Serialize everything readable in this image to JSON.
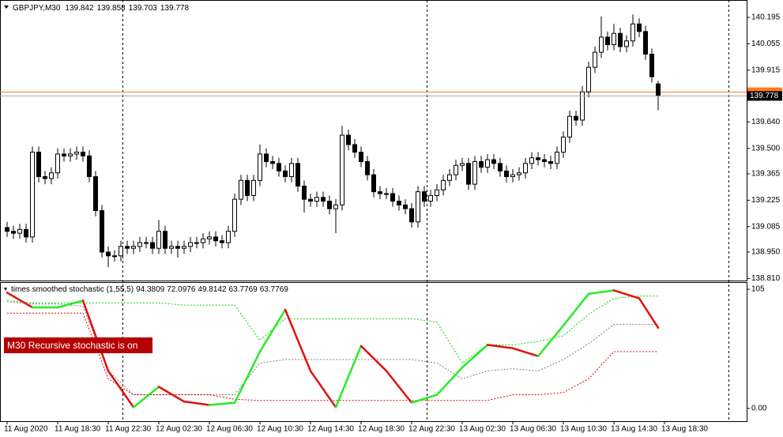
{
  "chart_data": {
    "type": "candlestick",
    "symbol": "GBPJPY,M30",
    "categories": [
      "11 Aug 2020",
      null,
      null,
      null,
      null,
      null,
      null,
      null,
      "11 Aug 18:30",
      null,
      null,
      null,
      null,
      null,
      null,
      null,
      "11 Aug 22:30",
      null,
      null,
      null,
      null,
      null,
      null,
      null,
      "12 Aug 02:30",
      null,
      null,
      null,
      null,
      null,
      null,
      null,
      "12 Aug 06:30",
      null,
      null,
      null,
      null,
      null,
      null,
      null,
      "12 Aug 10:30",
      null,
      null,
      null,
      null,
      null,
      null,
      null,
      "12 Aug 14:30",
      null,
      null,
      null,
      null,
      null,
      null,
      null,
      "12 Aug 18:30",
      null,
      null,
      null,
      null,
      null,
      null,
      null,
      "12 Aug 22:30",
      null,
      null,
      null,
      null,
      null,
      null,
      null,
      "13 Aug 02:30",
      null,
      null,
      null,
      null,
      null,
      null,
      null,
      "13 Aug 06:30",
      null,
      null,
      null,
      null,
      null,
      null,
      null,
      "13 Aug 10:30",
      null,
      null,
      null,
      null,
      null,
      null,
      null,
      "13 Aug 14:30",
      null,
      null,
      null,
      null,
      null,
      null,
      null,
      "13 Aug 18:30"
    ],
    "open": [
      139.08,
      139.06,
      139.05,
      139.07,
      139.03,
      139.48,
      139.35,
      139.34,
      139.37,
      139.47,
      139.46,
      139.47,
      139.48,
      139.46,
      139.35,
      139.17,
      138.95,
      138.93,
      138.93,
      138.98,
      138.97,
      138.98,
      139.0,
      139.0,
      138.97,
      139.06,
      138.97,
      138.98,
      138.97,
      138.98,
      139.0,
      139.0,
      139.02,
      139.03,
      139.01,
      139.0,
      139.06,
      139.23,
      139.33,
      139.25,
      139.33,
      139.47,
      139.43,
      139.42,
      139.38,
      139.35,
      139.42,
      139.3,
      139.23,
      139.22,
      139.24,
      139.22,
      139.18,
      139.2,
      139.57,
      139.52,
      139.48,
      139.43,
      139.36,
      139.27,
      139.26,
      139.26,
      139.22,
      139.2,
      139.18,
      139.11,
      139.27,
      139.22,
      139.25,
      139.28,
      139.33,
      139.36,
      139.41,
      139.42,
      139.31,
      139.43,
      139.4,
      139.44,
      139.42,
      139.38,
      139.35,
      139.36,
      139.37,
      139.42,
      139.45,
      139.44,
      139.43,
      139.42,
      139.48,
      139.56,
      139.67,
      139.65,
      139.8,
      139.93,
      140.01,
      140.09,
      140.05,
      140.11,
      140.04,
      140.07,
      140.16,
      140.12,
      140.0,
      139.842,
      null
    ],
    "high": [
      139.11,
      139.09,
      139.1,
      139.1,
      139.51,
      139.51,
      139.38,
      139.4,
      139.5,
      139.5,
      139.5,
      139.51,
      139.51,
      139.49,
      139.38,
      139.2,
      138.98,
      138.96,
      139.01,
      139.01,
      139.01,
      139.03,
      139.03,
      139.03,
      139.12,
      139.09,
      139.01,
      139.01,
      139.01,
      139.03,
      139.03,
      139.05,
      139.06,
      139.06,
      139.04,
      139.09,
      139.26,
      139.36,
      139.36,
      139.36,
      139.52,
      139.5,
      139.46,
      139.45,
      139.41,
      139.45,
      139.45,
      139.33,
      139.26,
      139.27,
      139.27,
      139.25,
      139.23,
      139.62,
      139.6,
      139.55,
      139.51,
      139.46,
      139.39,
      139.3,
      139.29,
      139.29,
      139.25,
      139.23,
      139.21,
      139.3,
      139.3,
      139.28,
      139.31,
      139.36,
      139.39,
      139.44,
      139.45,
      139.45,
      139.46,
      139.46,
      139.47,
      139.47,
      139.45,
      139.41,
      139.39,
      139.4,
      139.45,
      139.48,
      139.48,
      139.47,
      139.46,
      139.51,
      139.59,
      139.7,
      139.7,
      139.83,
      139.96,
      140.04,
      140.2,
      140.12,
      140.16,
      140.14,
      140.1,
      140.21,
      140.19,
      140.15,
      140.03,
      139.858,
      null
    ],
    "low": [
      139.03,
      139.02,
      139.02,
      139.0,
      139.0,
      139.32,
      139.31,
      139.31,
      139.34,
      139.43,
      139.43,
      139.44,
      139.43,
      139.32,
      139.14,
      138.92,
      138.87,
      138.9,
      138.9,
      138.94,
      138.94,
      138.95,
      138.97,
      138.94,
      138.94,
      138.94,
      138.94,
      138.92,
      138.94,
      138.95,
      138.97,
      138.97,
      138.99,
      138.98,
      138.97,
      138.97,
      139.03,
      139.2,
      139.22,
      139.22,
      139.3,
      139.4,
      139.39,
      139.35,
      139.32,
      139.32,
      139.27,
      139.16,
      139.19,
      139.19,
      139.19,
      139.15,
      139.05,
      139.17,
      139.49,
      139.45,
      139.4,
      139.33,
      139.24,
      139.23,
      139.23,
      139.19,
      139.17,
      139.15,
      139.08,
      139.08,
      139.19,
      139.19,
      139.22,
      139.25,
      139.3,
      139.33,
      139.38,
      139.28,
      139.28,
      139.37,
      139.37,
      139.39,
      139.35,
      139.32,
      139.32,
      139.33,
      139.34,
      139.39,
      139.41,
      139.4,
      139.39,
      139.39,
      139.45,
      139.53,
      139.62,
      139.62,
      139.77,
      139.9,
      139.98,
      140.02,
      140.02,
      140.01,
      140.01,
      140.04,
      140.09,
      139.97,
      139.85,
      139.703,
      null
    ],
    "close": [
      139.06,
      139.05,
      139.07,
      139.03,
      139.48,
      139.35,
      139.34,
      139.37,
      139.47,
      139.46,
      139.47,
      139.48,
      139.46,
      139.35,
      139.17,
      138.95,
      138.93,
      138.93,
      138.98,
      138.97,
      138.98,
      139.0,
      139.0,
      138.97,
      139.06,
      138.97,
      138.98,
      138.97,
      138.98,
      139.0,
      139.0,
      139.02,
      139.03,
      139.01,
      139.0,
      139.06,
      139.23,
      139.33,
      139.25,
      139.33,
      139.47,
      139.43,
      139.42,
      139.38,
      139.35,
      139.42,
      139.3,
      139.23,
      139.22,
      139.24,
      139.22,
      139.18,
      139.2,
      139.57,
      139.52,
      139.48,
      139.43,
      139.36,
      139.27,
      139.26,
      139.26,
      139.22,
      139.2,
      139.18,
      139.11,
      139.27,
      139.22,
      139.25,
      139.28,
      139.33,
      139.36,
      139.41,
      139.42,
      139.31,
      139.43,
      139.4,
      139.44,
      139.42,
      139.38,
      139.35,
      139.36,
      139.37,
      139.42,
      139.45,
      139.44,
      139.43,
      139.42,
      139.48,
      139.56,
      139.67,
      139.65,
      139.8,
      139.93,
      140.01,
      140.09,
      140.05,
      140.11,
      140.04,
      140.07,
      140.16,
      140.12,
      140.0,
      139.88,
      139.778,
      null
    ],
    "up_color": "#ffffff",
    "down_color": "#000000",
    "ylim": [
      138.799,
      140.287
    ],
    "yticks": [
      140.195,
      140.055,
      139.915,
      {
        "value": 139.64,
        "label": "139.640"
      },
      {
        "value": 139.5,
        "label": "139.500"
      },
      139.365,
      139.225,
      139.085,
      {
        "value": 138.95,
        "label": "138.950"
      },
      {
        "value": 138.81,
        "label": "138.810"
      }
    ],
    "ask": 139.798,
    "ask_color": "#ff7a1a",
    "bid_color": "#a8a8a8",
    "indicator": {
      "type": "line",
      "title": "times smoothed stochastic (1,55,5)",
      "readouts": [
        "94.3809",
        "72.0976",
        "49.8142",
        "63.7769",
        "63.7769"
      ],
      "notice": "M30 Recursive stochastic is on",
      "ylim": [
        -11.3,
        111.3
      ],
      "yticks": [
        105,
        {
          "value": 0,
          "label": "0.00"
        }
      ],
      "x": [
        0,
        4,
        8,
        12,
        16,
        20,
        24,
        28,
        32,
        36,
        40,
        44,
        48,
        52,
        56,
        60,
        64,
        68,
        72,
        76,
        80,
        84,
        88,
        92,
        96,
        100,
        103
      ],
      "series": [
        {
          "color": "#00dd00",
          "style": "dashed",
          "values": [
            95,
            93,
            93,
            93,
            93,
            93,
            93,
            91,
            91,
            91,
            60,
            79,
            79,
            79,
            79,
            79,
            79,
            76,
            40,
            56,
            56,
            59,
            64,
            83,
            97,
            99,
            99
          ]
        },
        {
          "color": "#808080",
          "style": "dashed",
          "values": [
            94,
            92,
            92,
            90,
            33,
            12,
            12,
            12,
            12,
            12,
            40,
            43,
            43,
            43,
            43,
            43,
            43,
            40,
            26,
            33,
            35,
            33,
            43,
            57,
            74,
            74,
            74
          ]
        },
        {
          "color": "#dd0000",
          "style": "dashed",
          "values": [
            84,
            84,
            84,
            84,
            26,
            12,
            12,
            12,
            12,
            8,
            7,
            7,
            7,
            7,
            7,
            7,
            7,
            7,
            7,
            7,
            12,
            12,
            14,
            26,
            50,
            50,
            50
          ]
        },
        {
          "up_color": "#22ee22",
          "down_color": "#e01010",
          "style": "solid",
          "values": [
            102,
            89,
            89,
            95,
            33,
            1,
            19,
            6,
            3,
            5,
            50,
            87,
            33,
            1,
            55,
            33,
            5,
            12,
            36,
            56,
            53,
            46,
            73,
            101,
            104,
            97,
            71
          ]
        }
      ]
    }
  }
}
